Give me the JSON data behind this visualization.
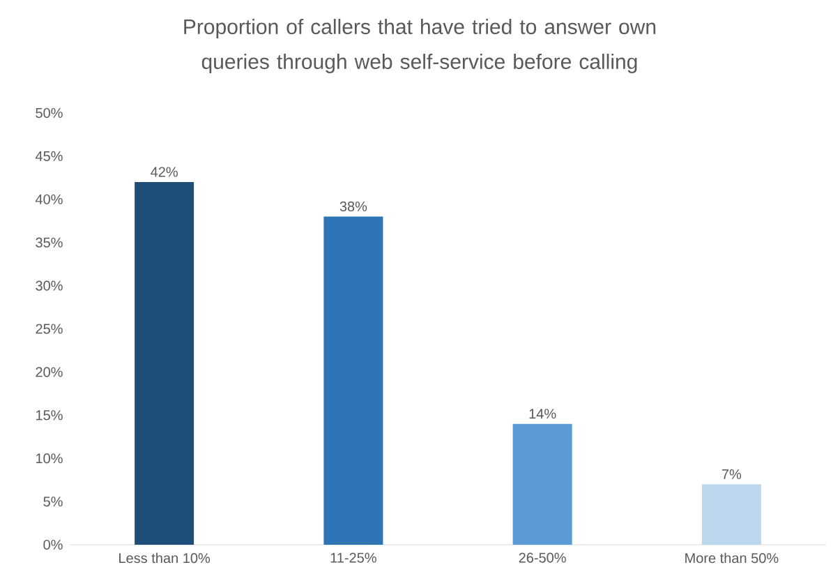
{
  "chart_data": {
    "type": "bar",
    "title": "Proportion of callers that have tried to answer own queries through web self-service before calling",
    "categories": [
      "Less than 10%",
      "11-25%",
      "26-50%",
      "More than 50%"
    ],
    "values": [
      42,
      38,
      14,
      7
    ],
    "colors": [
      "#1f4e79",
      "#2e75b6",
      "#5b9bd5",
      "#bdd7ee"
    ],
    "value_labels": [
      "42%",
      "38%",
      "14%",
      "7%"
    ],
    "ylim": [
      0,
      50
    ],
    "yticks": [
      {
        "value": 0,
        "label": "0%"
      },
      {
        "value": 5,
        "label": "5%"
      },
      {
        "value": 10,
        "label": "10%"
      },
      {
        "value": 15,
        "label": "15%"
      },
      {
        "value": 20,
        "label": "20%"
      },
      {
        "value": 25,
        "label": "25%"
      },
      {
        "value": 30,
        "label": "30%"
      },
      {
        "value": 35,
        "label": "35%"
      },
      {
        "value": 40,
        "label": "40%"
      },
      {
        "value": 45,
        "label": "45%"
      },
      {
        "value": 50,
        "label": "50%"
      }
    ]
  }
}
